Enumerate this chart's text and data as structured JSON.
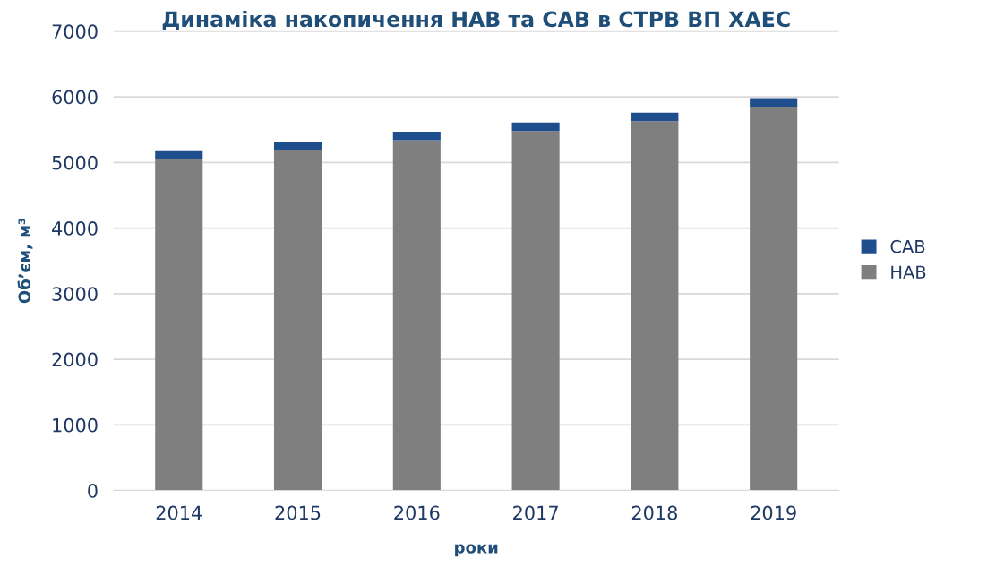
{
  "chart_data": {
    "type": "bar",
    "title": "Динаміка накопичення НАВ та САВ в СТРВ ВП ХАЕС",
    "xlabel": "роки",
    "ylabel": "Об’єм, м³",
    "categories": [
      "2014",
      "2015",
      "2016",
      "2017",
      "2018",
      "2019"
    ],
    "stacked": true,
    "series": [
      {
        "name": "НАВ",
        "color": "#7f7f7f",
        "values": [
          5050,
          5180,
          5340,
          5480,
          5630,
          5840
        ]
      },
      {
        "name": "САВ",
        "color": "#1f4e8c",
        "values": [
          120,
          130,
          130,
          130,
          130,
          140
        ]
      }
    ],
    "ylim": [
      0,
      7000
    ],
    "yticks": [
      0,
      1000,
      2000,
      3000,
      4000,
      5000,
      6000,
      7000
    ],
    "grid": "y",
    "legend": "right"
  }
}
